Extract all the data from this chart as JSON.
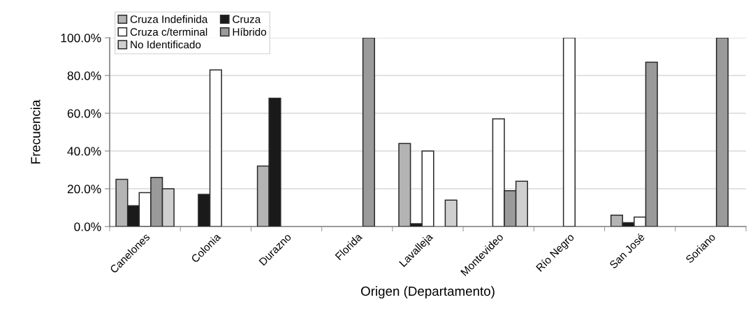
{
  "chart_data": {
    "type": "bar",
    "xlabel": "Origen (Departamento)",
    "ylabel": "Frecuencia",
    "categories": [
      "Canelones",
      "Colonia",
      "Durazno",
      "Florida",
      "Lavalleja",
      "Montevideo",
      "Río Negro",
      "San José",
      "Soriano"
    ],
    "series": [
      {
        "name": "Cruza Indefinida",
        "color": "#b4b4b4",
        "values": [
          25,
          null,
          32,
          null,
          44,
          null,
          null,
          6,
          null
        ]
      },
      {
        "name": "Cruza",
        "color": "#1a1a1a",
        "values": [
          11,
          17,
          68,
          null,
          1.5,
          null,
          null,
          2,
          null
        ]
      },
      {
        "name": "Cruza c/terminal",
        "color": "#ffffff",
        "values": [
          18,
          83,
          null,
          null,
          40,
          57,
          100,
          5,
          null
        ]
      },
      {
        "name": "Híbrido",
        "color": "#9a9a9a",
        "values": [
          26,
          null,
          null,
          100,
          null,
          19,
          null,
          87,
          100
        ]
      },
      {
        "name": "No Identificado",
        "color": "#cfcfcf",
        "values": [
          20,
          null,
          null,
          null,
          14,
          24,
          null,
          null,
          null
        ]
      }
    ],
    "ylim": [
      0,
      100
    ],
    "yticks": [
      {
        "value": 0,
        "label": "0.0%"
      },
      {
        "value": 20,
        "label": "20.0%"
      },
      {
        "value": 40,
        "label": "40.0%"
      },
      {
        "value": 60,
        "label": "60.0%"
      },
      {
        "value": 80,
        "label": "80.0%"
      },
      {
        "value": 100,
        "label": "100.0%"
      }
    ],
    "grid": "y",
    "legend": "top left"
  }
}
